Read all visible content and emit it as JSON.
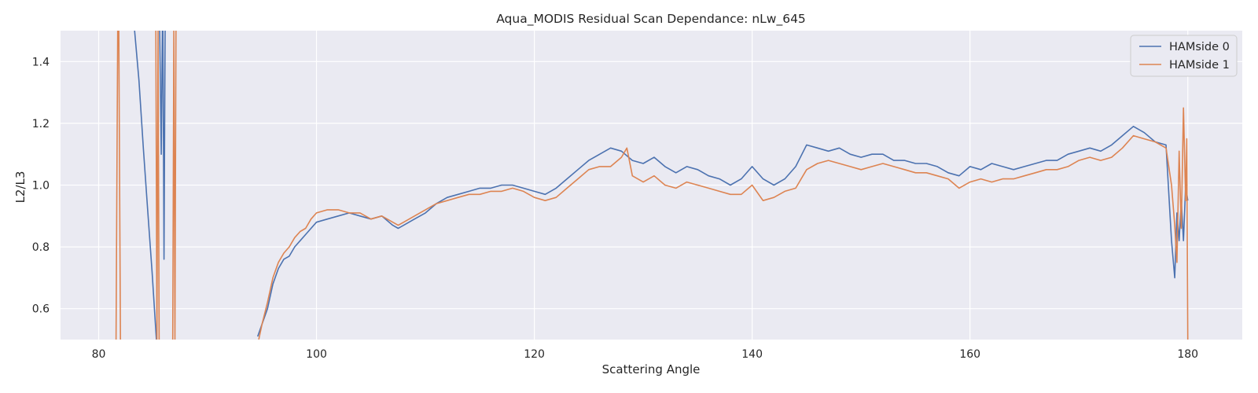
{
  "chart_data": {
    "type": "line",
    "title": "Aqua_MODIS Residual Scan Dependance: nLw_645",
    "xlabel": "Scattering Angle",
    "ylabel": "L2/L3",
    "xlim": [
      76.5,
      185
    ],
    "ylim": [
      0.5,
      1.5
    ],
    "xticks": [
      80,
      100,
      120,
      140,
      160,
      180
    ],
    "yticks": [
      0.6,
      0.8,
      1.0,
      1.2,
      1.4
    ],
    "xtick_labels": [
      "80",
      "100",
      "120",
      "140",
      "160",
      "180"
    ],
    "ytick_labels": [
      "0.6",
      "0.8",
      "1.0",
      "1.2",
      "1.4"
    ],
    "grid": true,
    "legend": "top-right",
    "colors": {
      "background": "#eaeaf2",
      "grid": "#ffffff",
      "series0": "#4c72b0",
      "series1": "#dd8452"
    },
    "series": [
      {
        "name": "HAMside 0",
        "color": "#4c72b0",
        "segments": [
          {
            "x": [
              83.3,
              83.7,
              84.1,
              84.5,
              84.9,
              85.3
            ],
            "y": [
              1.5,
              1.34,
              1.12,
              0.92,
              0.72,
              0.5
            ]
          },
          {
            "x": [
              85.6,
              85.75,
              85.85,
              85.9,
              86.0,
              86.1,
              86.15
            ],
            "y": [
              1.5,
              1.1,
              1.5,
              1.5,
              0.76,
              1.5,
              1.5
            ]
          },
          {
            "x": [
              94.6,
              95.0,
              95.5,
              96.0,
              96.5,
              97.0,
              97.5,
              98.0,
              98.5,
              99.0,
              99.5,
              100.0,
              101.0,
              102.0,
              103.0,
              104.0,
              105.0,
              106.0,
              107.0,
              107.5,
              108.0,
              109.0,
              110.0,
              111.0,
              112.0,
              113.0,
              114.0,
              115.0,
              116.0,
              117.0,
              118.0,
              119.0,
              120.0,
              121.0,
              122.0,
              123.0,
              124.0,
              125.0,
              126.0,
              127.0,
              128.0,
              129.0,
              130.0,
              131.0,
              132.0,
              133.0,
              134.0,
              135.0,
              136.0,
              137.0,
              138.0,
              139.0,
              140.0,
              141.0,
              142.0,
              143.0,
              144.0,
              145.0,
              146.0,
              147.0,
              148.0,
              149.0,
              150.0,
              151.0,
              152.0,
              153.0,
              154.0,
              155.0,
              156.0,
              157.0,
              158.0,
              159.0,
              160.0,
              161.0,
              162.0,
              163.0,
              164.0,
              165.0,
              166.0,
              167.0,
              168.0,
              169.0,
              170.0,
              171.0,
              172.0,
              173.0,
              174.0,
              175.0,
              176.0,
              177.0,
              178.0,
              178.5,
              178.8,
              179.0,
              179.2,
              179.4,
              179.6,
              179.8,
              180.0
            ],
            "y": [
              0.51,
              0.55,
              0.6,
              0.68,
              0.73,
              0.76,
              0.77,
              0.8,
              0.82,
              0.84,
              0.86,
              0.88,
              0.89,
              0.9,
              0.91,
              0.9,
              0.89,
              0.9,
              0.87,
              0.86,
              0.87,
              0.89,
              0.91,
              0.94,
              0.96,
              0.97,
              0.98,
              0.99,
              0.99,
              1.0,
              1.0,
              0.99,
              0.98,
              0.97,
              0.99,
              1.02,
              1.05,
              1.08,
              1.1,
              1.12,
              1.11,
              1.08,
              1.07,
              1.09,
              1.06,
              1.04,
              1.06,
              1.05,
              1.03,
              1.02,
              1.0,
              1.02,
              1.06,
              1.02,
              1.0,
              1.02,
              1.06,
              1.13,
              1.12,
              1.11,
              1.12,
              1.1,
              1.09,
              1.1,
              1.1,
              1.08,
              1.08,
              1.07,
              1.07,
              1.06,
              1.04,
              1.03,
              1.06,
              1.05,
              1.07,
              1.06,
              1.05,
              1.06,
              1.07,
              1.08,
              1.08,
              1.1,
              1.11,
              1.12,
              1.11,
              1.13,
              1.16,
              1.19,
              1.17,
              1.14,
              1.13,
              0.82,
              0.7,
              0.91,
              0.82,
              0.95,
              0.82,
              1.0,
              0.95
            ]
          }
        ]
      },
      {
        "name": "HAMside 1",
        "color": "#dd8452",
        "segments": [
          {
            "x": [
              81.6,
              81.75,
              81.85,
              82.0
            ],
            "y": [
              0.5,
              1.5,
              1.5,
              0.5
            ]
          },
          {
            "x": [
              85.25,
              85.35,
              85.45,
              85.55
            ],
            "y": [
              1.5,
              0.5,
              1.5,
              0.5
            ]
          },
          {
            "x": [
              86.8,
              86.9,
              87.0,
              87.1
            ],
            "y": [
              0.5,
              1.5,
              0.5,
              1.5
            ]
          },
          {
            "x": [
              94.7,
              95.0,
              95.5,
              96.0,
              96.5,
              97.0,
              97.5,
              98.0,
              98.5,
              99.0,
              99.5,
              100.0,
              101.0,
              102.0,
              103.0,
              104.0,
              105.0,
              106.0,
              107.0,
              107.5,
              108.0,
              109.0,
              110.0,
              111.0,
              112.0,
              113.0,
              114.0,
              115.0,
              116.0,
              117.0,
              118.0,
              119.0,
              120.0,
              121.0,
              122.0,
              123.0,
              124.0,
              125.0,
              126.0,
              127.0,
              128.0,
              128.5,
              129.0,
              130.0,
              131.0,
              132.0,
              133.0,
              134.0,
              135.0,
              136.0,
              137.0,
              138.0,
              139.0,
              140.0,
              141.0,
              142.0,
              143.0,
              144.0,
              145.0,
              146.0,
              147.0,
              148.0,
              149.0,
              150.0,
              151.0,
              152.0,
              153.0,
              154.0,
              155.0,
              156.0,
              157.0,
              158.0,
              159.0,
              160.0,
              161.0,
              162.0,
              163.0,
              164.0,
              165.0,
              166.0,
              167.0,
              168.0,
              169.0,
              170.0,
              171.0,
              172.0,
              173.0,
              174.0,
              175.0,
              176.0,
              177.0,
              178.0,
              178.5,
              178.8,
              179.0,
              179.2,
              179.4,
              179.6,
              179.8,
              179.9,
              180.0
            ],
            "y": [
              0.5,
              0.55,
              0.62,
              0.7,
              0.75,
              0.78,
              0.8,
              0.83,
              0.85,
              0.86,
              0.89,
              0.91,
              0.92,
              0.92,
              0.91,
              0.91,
              0.89,
              0.9,
              0.88,
              0.87,
              0.88,
              0.9,
              0.92,
              0.94,
              0.95,
              0.96,
              0.97,
              0.97,
              0.98,
              0.98,
              0.99,
              0.98,
              0.96,
              0.95,
              0.96,
              0.99,
              1.02,
              1.05,
              1.06,
              1.06,
              1.09,
              1.12,
              1.03,
              1.01,
              1.03,
              1.0,
              0.99,
              1.01,
              1.0,
              0.99,
              0.98,
              0.97,
              0.97,
              1.0,
              0.95,
              0.96,
              0.98,
              0.99,
              1.05,
              1.07,
              1.08,
              1.07,
              1.06,
              1.05,
              1.06,
              1.07,
              1.06,
              1.05,
              1.04,
              1.04,
              1.03,
              1.02,
              0.99,
              1.01,
              1.02,
              1.01,
              1.02,
              1.02,
              1.03,
              1.04,
              1.05,
              1.05,
              1.06,
              1.08,
              1.09,
              1.08,
              1.09,
              1.12,
              1.16,
              1.15,
              1.14,
              1.12,
              1.0,
              0.87,
              0.75,
              1.11,
              0.86,
              1.25,
              0.95,
              1.15,
              0.5
            ]
          }
        ]
      }
    ]
  }
}
